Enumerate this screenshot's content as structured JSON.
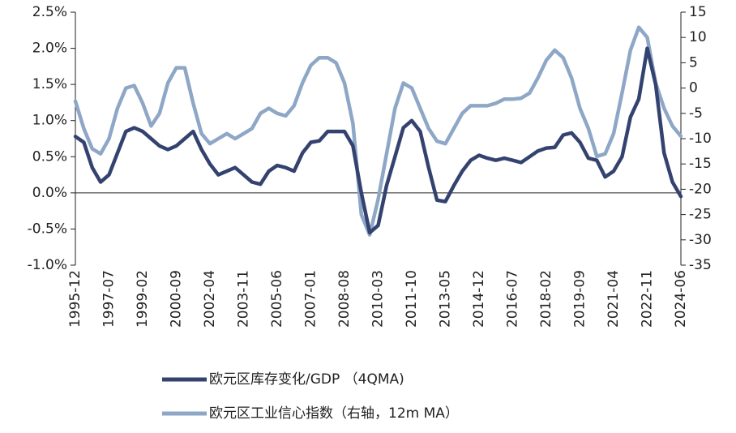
{
  "chart_data": {
    "type": "line",
    "categories": [
      "1995-12",
      null,
      null,
      null,
      "1997-07",
      null,
      null,
      null,
      "1999-02",
      null,
      null,
      null,
      "2000-09",
      null,
      null,
      null,
      "2002-04",
      null,
      null,
      null,
      "2003-11",
      null,
      null,
      null,
      "2005-06",
      null,
      null,
      null,
      "2007-01",
      null,
      null,
      null,
      "2008-08",
      null,
      null,
      null,
      "2010-03",
      null,
      null,
      null,
      "2011-10",
      null,
      null,
      null,
      "2013-05",
      null,
      null,
      null,
      "2014-12",
      null,
      null,
      null,
      "2016-07",
      null,
      null,
      null,
      "2018-02",
      null,
      null,
      null,
      "2019-09",
      null,
      null,
      null,
      "2021-04",
      null,
      null,
      null,
      "2022-11",
      null,
      null,
      null,
      "2024-06"
    ],
    "series": [
      {
        "name": "欧元区库存变化/GDP （4QMA)",
        "color": "#34426f",
        "axis": "y",
        "values": [
          0.78,
          0.7,
          0.35,
          0.15,
          0.25,
          0.55,
          0.85,
          0.9,
          0.85,
          0.75,
          0.65,
          0.6,
          0.65,
          0.75,
          0.85,
          0.6,
          0.4,
          0.25,
          0.3,
          0.35,
          0.25,
          0.15,
          0.12,
          0.3,
          0.38,
          0.35,
          0.3,
          0.55,
          0.7,
          0.72,
          0.85,
          0.85,
          0.85,
          0.65,
          0.0,
          -0.55,
          -0.45,
          0.1,
          0.5,
          0.9,
          1.0,
          0.85,
          0.35,
          -0.1,
          -0.12,
          0.1,
          0.3,
          0.45,
          0.52,
          0.48,
          0.45,
          0.48,
          0.45,
          0.42,
          0.5,
          0.58,
          0.62,
          0.63,
          0.8,
          0.83,
          0.7,
          0.48,
          0.45,
          0.22,
          0.3,
          0.5,
          1.05,
          1.3,
          2.0,
          1.5,
          0.55,
          0.15,
          -0.05
        ]
      },
      {
        "name": "欧元区工业信心指数（右轴，12m MA）",
        "color": "#8ea7c6",
        "axis": "y2",
        "values": [
          -2.6,
          -8,
          -12,
          -13,
          -10,
          -4,
          0,
          0.5,
          -3,
          -7.5,
          -5,
          1,
          4,
          4,
          -3,
          -9,
          -11,
          -10,
          -9,
          -10,
          -9,
          -8,
          -5,
          -4,
          -5,
          -5.5,
          -3.5,
          1,
          4.5,
          6,
          6,
          5,
          1,
          -7,
          -25,
          -29,
          -22,
          -13,
          -4,
          1,
          0,
          -4,
          -8,
          -10.5,
          -11,
          -8,
          -5,
          -3.5,
          -3.5,
          -3.5,
          -3,
          -2.2,
          -2.2,
          -2,
          -1,
          2,
          5.5,
          7.5,
          6,
          2,
          -4,
          -8,
          -13.5,
          -13,
          -9,
          -1,
          7.5,
          12,
          10,
          1,
          -4,
          -7.5,
          -9.5
        ]
      }
    ],
    "ylim": [
      -1.0,
      2.5
    ],
    "yticks": [
      {
        "value": -1.0,
        "label": "-1.0%"
      },
      {
        "value": -0.5,
        "label": "-0.5%"
      },
      {
        "value": 0,
        "label": "0.0%"
      },
      {
        "value": 0.5,
        "label": "0.5%"
      },
      {
        "value": 1.0,
        "label": "1.0%"
      },
      {
        "value": 1.5,
        "label": "1.5%"
      },
      {
        "value": 2.0,
        "label": "2.0%"
      },
      {
        "value": 2.5,
        "label": "2.5%"
      }
    ],
    "y2lim": [
      -35,
      15
    ],
    "y2ticks": [
      -35,
      -30,
      -25,
      -20,
      -15,
      -10,
      -5,
      0,
      5,
      10,
      15
    ]
  }
}
